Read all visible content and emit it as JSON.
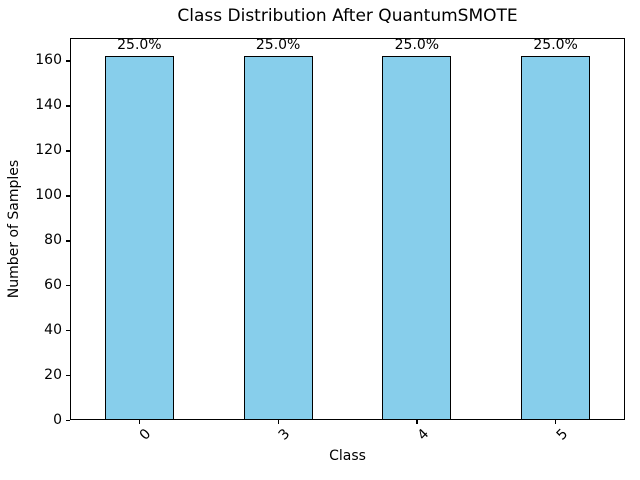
{
  "chart_data": {
    "type": "bar",
    "title": "Class Distribution After QuantumSMOTE",
    "xlabel": "Class",
    "ylabel": "Number of Samples",
    "categories": [
      "0",
      "3",
      "4",
      "5"
    ],
    "values": [
      162,
      162,
      162,
      162
    ],
    "bar_labels": [
      "25.0%",
      "25.0%",
      "25.0%",
      "25.0%"
    ],
    "ylim": [
      0,
      170
    ],
    "yticks": [
      0,
      20,
      40,
      60,
      80,
      100,
      120,
      140,
      160
    ],
    "xtick_rotation_deg": 45,
    "grid": "horizontal-dashed",
    "legend": "none",
    "bar_color": "#87CEEB",
    "bar_edge_color": "#000000",
    "gridline_color": "#c6c6c6",
    "background_color": "#ffffff",
    "text_color": "#000000"
  }
}
